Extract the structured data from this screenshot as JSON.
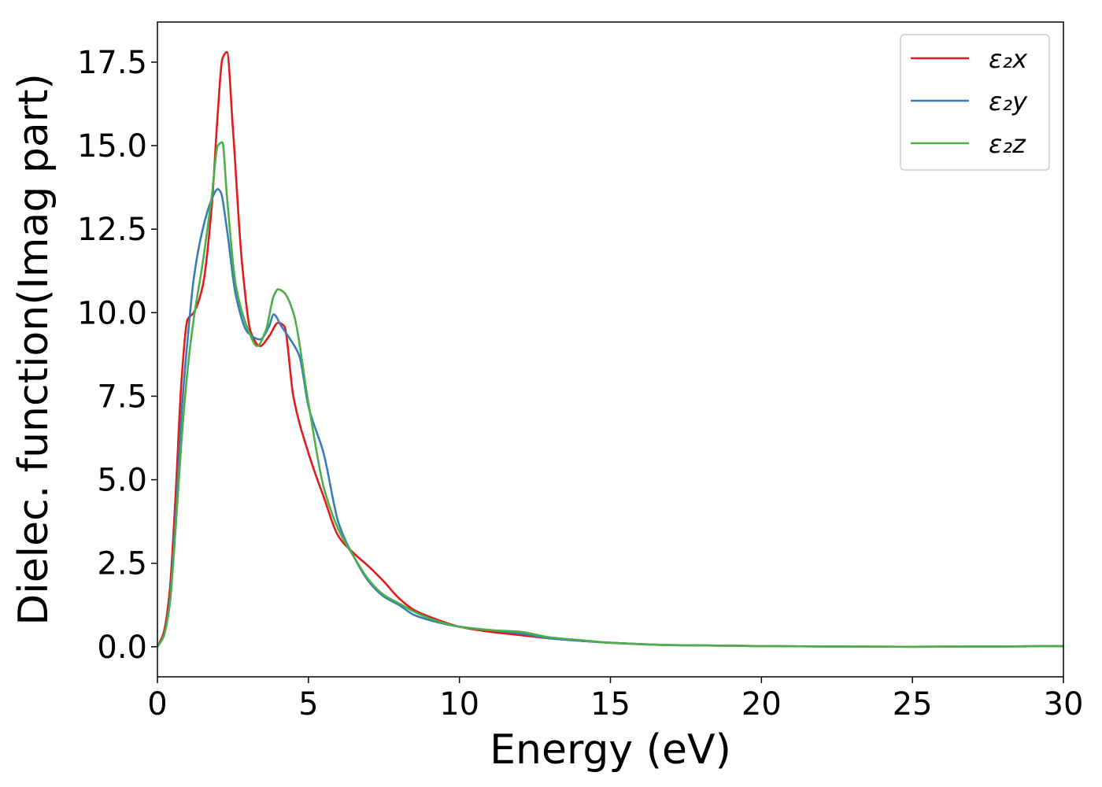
{
  "chart_data": {
    "type": "line",
    "title": "",
    "xlabel": "Energy (eV)",
    "ylabel": "Dielec. function(Imag part)",
    "xlim": [
      0,
      30
    ],
    "ylim": [
      -0.9,
      18.7
    ],
    "xticks": [
      0,
      5,
      10,
      15,
      20,
      25,
      30
    ],
    "xtick_labels": [
      "0",
      "5",
      "10",
      "15",
      "20",
      "25",
      "30"
    ],
    "yticks": [
      0,
      2.5,
      5,
      7.5,
      10,
      12.5,
      15,
      17.5
    ],
    "ytick_labels": [
      "0.0",
      "2.5",
      "5.0",
      "7.5",
      "10.0",
      "12.5",
      "15.0",
      "17.5"
    ],
    "grid": false,
    "legend_position": "top-right",
    "series": [
      {
        "name": "ε₂x",
        "color": "#e41a1c",
        "x": [
          0,
          0.2,
          0.4,
          0.6,
          0.8,
          1.0,
          1.2,
          1.5,
          1.8,
          2.0,
          2.15,
          2.3,
          2.5,
          2.8,
          3.1,
          3.4,
          3.7,
          4.0,
          4.2,
          4.5,
          5.0,
          5.5,
          6.0,
          6.5,
          7.0,
          7.5,
          8.0,
          8.5,
          9.0,
          10.0,
          11.0,
          12.0,
          13.0,
          14.0,
          15.0,
          17.0,
          20.0,
          25.0,
          30.0
        ],
        "y": [
          0.0,
          0.4,
          1.6,
          4.5,
          8.0,
          9.8,
          10.0,
          10.8,
          13.2,
          16.0,
          17.6,
          17.8,
          15.5,
          11.5,
          9.4,
          9.0,
          9.3,
          9.7,
          9.6,
          7.5,
          5.8,
          4.5,
          3.3,
          2.8,
          2.4,
          1.95,
          1.45,
          1.1,
          0.9,
          0.6,
          0.45,
          0.35,
          0.25,
          0.18,
          0.12,
          0.05,
          0.02,
          0.0,
          0.02
        ]
      },
      {
        "name": "ε₂y",
        "color": "#377eb8",
        "x": [
          0,
          0.2,
          0.4,
          0.6,
          0.8,
          1.0,
          1.2,
          1.5,
          1.8,
          2.0,
          2.1,
          2.3,
          2.6,
          3.0,
          3.4,
          3.7,
          3.85,
          4.1,
          4.4,
          4.7,
          5.0,
          5.5,
          6.0,
          6.5,
          7.0,
          7.5,
          8.0,
          8.5,
          9.0,
          10.0,
          11.0,
          12.0,
          13.0,
          14.0,
          15.0,
          17.0,
          20.0,
          25.0,
          30.0
        ],
        "y": [
          0.0,
          0.3,
          1.3,
          3.8,
          7.0,
          9.2,
          11.0,
          12.5,
          13.4,
          13.7,
          13.6,
          12.5,
          10.5,
          9.4,
          9.2,
          9.6,
          9.95,
          9.6,
          9.2,
          8.7,
          7.2,
          5.8,
          3.7,
          2.7,
          1.95,
          1.5,
          1.25,
          0.95,
          0.8,
          0.6,
          0.5,
          0.4,
          0.25,
          0.18,
          0.12,
          0.05,
          0.02,
          0.0,
          0.02
        ]
      },
      {
        "name": "ε₂z",
        "color": "#4daf4a",
        "x": [
          0,
          0.2,
          0.4,
          0.6,
          0.8,
          1.0,
          1.2,
          1.5,
          1.8,
          2.0,
          2.15,
          2.3,
          2.6,
          3.0,
          3.3,
          3.6,
          3.85,
          4.0,
          4.2,
          4.5,
          5.0,
          5.5,
          6.0,
          6.5,
          7.0,
          7.5,
          8.0,
          8.5,
          9.0,
          10.0,
          11.0,
          12.0,
          13.0,
          14.0,
          15.0,
          17.0,
          20.0,
          25.0,
          30.0
        ],
        "y": [
          0.0,
          0.3,
          1.2,
          3.5,
          6.2,
          8.3,
          9.8,
          11.5,
          13.5,
          15.0,
          15.1,
          13.5,
          10.8,
          9.5,
          9.0,
          9.5,
          10.5,
          10.7,
          10.6,
          10.0,
          7.3,
          4.8,
          3.5,
          2.7,
          2.0,
          1.55,
          1.3,
          1.05,
          0.85,
          0.6,
          0.5,
          0.45,
          0.28,
          0.2,
          0.12,
          0.05,
          0.02,
          0.0,
          0.02
        ]
      }
    ]
  }
}
